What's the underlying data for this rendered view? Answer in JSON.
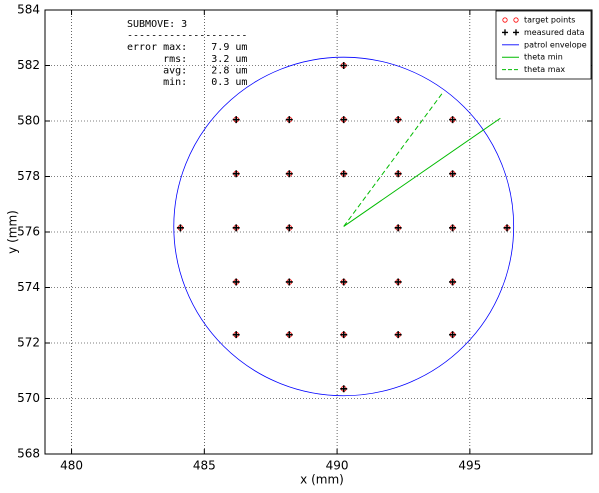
{
  "chart_data": {
    "type": "scatter",
    "xlabel": "x (mm)",
    "ylabel": "y (mm)",
    "xlim": [
      479,
      499.6
    ],
    "ylim": [
      568,
      584
    ],
    "xticks": [
      480,
      485,
      490,
      495
    ],
    "yticks": [
      568,
      570,
      572,
      574,
      576,
      578,
      580,
      582,
      584
    ],
    "grid": true,
    "legend": "upper right",
    "annotation": [
      "SUBMOVE: 3",
      "--------------------",
      "error max:    7.9 um",
      "      rms:    3.2 um",
      "      avg:    2.8 um",
      "      min:    0.3 um"
    ],
    "series": [
      {
        "name": "target points",
        "color": "#ff0000",
        "marker": "circle",
        "x": [
          490.25,
          486.2,
          488.2,
          490.25,
          492.3,
          494.35,
          486.2,
          488.2,
          490.25,
          492.3,
          494.35,
          484.1,
          486.2,
          488.2,
          492.3,
          494.35,
          496.4,
          486.2,
          488.2,
          490.25,
          492.3,
          494.35,
          486.2,
          488.2,
          490.25,
          492.3,
          494.35,
          490.25
        ],
        "y": [
          582.0,
          580.05,
          580.05,
          580.05,
          580.05,
          580.05,
          578.1,
          578.1,
          578.1,
          578.1,
          578.1,
          576.15,
          576.15,
          576.15,
          576.15,
          576.15,
          576.15,
          574.2,
          574.2,
          574.2,
          574.2,
          574.2,
          572.3,
          572.3,
          572.3,
          572.3,
          572.3,
          570.35
        ]
      },
      {
        "name": "measured data",
        "color": "#000000",
        "marker": "plus",
        "x": [
          490.25,
          486.2,
          488.2,
          490.25,
          492.3,
          494.35,
          486.2,
          488.2,
          490.25,
          492.3,
          494.35,
          484.1,
          486.2,
          488.2,
          492.3,
          494.35,
          496.4,
          486.2,
          488.2,
          490.25,
          492.3,
          494.35,
          486.2,
          488.2,
          490.25,
          492.3,
          494.35,
          490.25
        ],
        "y": [
          582.0,
          580.05,
          580.05,
          580.05,
          580.05,
          580.05,
          578.1,
          578.1,
          578.1,
          578.1,
          578.1,
          576.15,
          576.15,
          576.15,
          576.15,
          576.15,
          576.15,
          574.2,
          574.2,
          574.2,
          574.2,
          574.2,
          572.3,
          572.3,
          572.3,
          572.3,
          572.3,
          570.35
        ]
      },
      {
        "name": "patrol envelope",
        "color": "#0000ff",
        "marker": "ellipse",
        "center": [
          490.25,
          576.2
        ],
        "rx": 6.4,
        "ry": 6.1
      },
      {
        "name": "theta min",
        "color": "#00bb00",
        "marker": "solid",
        "x": [
          490.25,
          496.15
        ],
        "y": [
          576.2,
          580.1
        ]
      },
      {
        "name": "theta max",
        "color": "#00bb00",
        "marker": "dashed",
        "x": [
          490.25,
          494.0
        ],
        "y": [
          576.2,
          581.05
        ]
      }
    ]
  }
}
